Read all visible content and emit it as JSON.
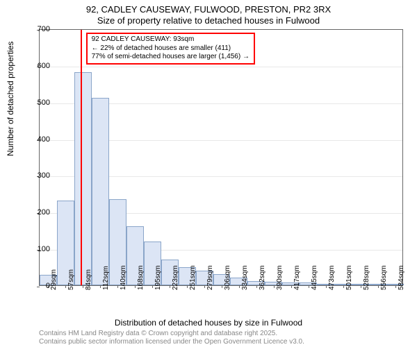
{
  "title_line1": "92, CADLEY CAUSEWAY, FULWOOD, PRESTON, PR2 3RX",
  "title_line2": "Size of property relative to detached houses in Fulwood",
  "ylabel": "Number of detached properties",
  "xlabel": "Distribution of detached houses by size in Fulwood",
  "footer_line1": "Contains HM Land Registry data © Crown copyright and database right 2025.",
  "footer_line2": "Contains public sector information licensed under the Open Government Licence v3.0.",
  "chart": {
    "type": "histogram",
    "ylim": [
      0,
      700
    ],
    "ytick_step": 100,
    "yticks": [
      0,
      100,
      200,
      300,
      400,
      500,
      600,
      700
    ],
    "categories": [
      "29sqm",
      "57sqm",
      "84sqm",
      "112sqm",
      "140sqm",
      "168sqm",
      "195sqm",
      "223sqm",
      "251sqm",
      "279sqm",
      "306sqm",
      "334sqm",
      "362sqm",
      "390sqm",
      "417sqm",
      "445sqm",
      "473sqm",
      "501sqm",
      "528sqm",
      "556sqm",
      "584sqm"
    ],
    "values": [
      28,
      230,
      580,
      510,
      235,
      160,
      120,
      70,
      50,
      40,
      30,
      20,
      12,
      10,
      8,
      7,
      3,
      2,
      1,
      1,
      1
    ],
    "bar_color": "#dce5f5",
    "bar_border_color": "#8aa5c9",
    "background_color": "#ffffff",
    "grid_color": "#e8e8e8",
    "axis_color": "#666666",
    "vline_color": "#ff0000",
    "vline_category_index": 2,
    "vline_offset": 0.35,
    "label_fontsize": 12,
    "tick_fontsize": 11
  },
  "annotation": {
    "border_color": "#ff0000",
    "line1": "92 CADLEY CAUSEWAY: 93sqm",
    "line2": "← 22% of detached houses are smaller (411)",
    "line3": "77% of semi-detached houses are larger (1,456) →"
  }
}
